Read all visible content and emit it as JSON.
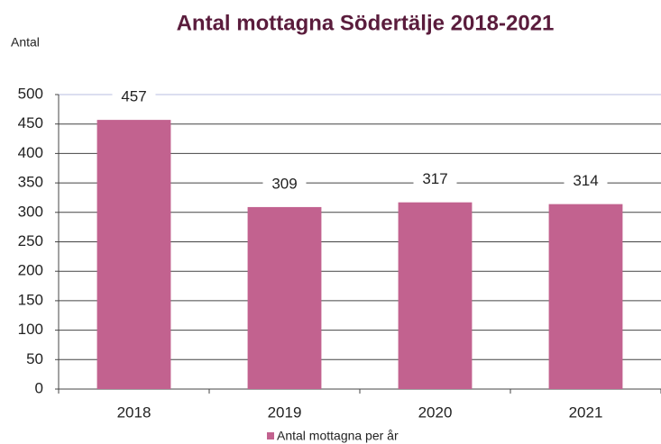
{
  "chart_data": {
    "type": "bar",
    "title": "Antal mottagna Södertälje 2018-2021",
    "y_label": "Antal",
    "categories": [
      "2018",
      "2019",
      "2020",
      "2021"
    ],
    "series": [
      {
        "name": "Antal mottagna per år",
        "color": "#c2628f",
        "values": [
          457,
          309,
          317,
          314
        ]
      }
    ],
    "ylim": [
      0,
      500
    ],
    "yticks": [
      0,
      50,
      100,
      150,
      200,
      250,
      300,
      350,
      400,
      450,
      500
    ],
    "grid": true,
    "legend": "bottom",
    "data_labels": true
  }
}
